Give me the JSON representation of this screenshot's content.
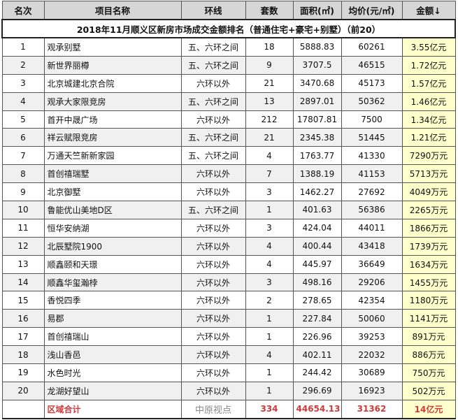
{
  "title": "2018年11月顺义区新房市场成交金额排名（普通住宅+豪宅+别墅）（前20）",
  "headers": [
    "名次",
    "项目名称",
    "环线",
    "套数",
    "面积(㎡)",
    "均价(元/㎡)",
    "金额↓"
  ],
  "rows": [
    [
      "1",
      "观承别墅",
      "五、六环之间",
      "18",
      "5888.83",
      "60261",
      "3.55亿元"
    ],
    [
      "2",
      "新世界丽樽",
      "五、六环之间",
      "9",
      "3707.5",
      "46515",
      "1.72亿元"
    ],
    [
      "3",
      "北京城建北京合院",
      "六环以外",
      "21",
      "3470.68",
      "45173",
      "1.57亿元"
    ],
    [
      "4",
      "观承大家限竞房",
      "五、六环之间",
      "13",
      "2897.01",
      "50362",
      "1.46亿元"
    ],
    [
      "5",
      "首开中晟广场",
      "六环以外",
      "212",
      "17807.81",
      "7500",
      "1.34亿元"
    ],
    [
      "6",
      "祥云赋限竞房",
      "五、六环之间",
      "21",
      "2345.38",
      "51445",
      "1.21亿元"
    ],
    [
      "7",
      "万通天竺新新家园",
      "五、六环之间",
      "4",
      "1763.77",
      "41330",
      "7290万元"
    ],
    [
      "8",
      "首创禧瑞墅",
      "六环以外",
      "7",
      "1388.19",
      "41153",
      "5713万元"
    ],
    [
      "9",
      "北京御墅",
      "六环以外",
      "3",
      "1462.27",
      "27692",
      "4049万元"
    ],
    [
      "10",
      "鲁能优山美地D区",
      "五、六环之间",
      "1",
      "401.63",
      "56386",
      "2265万元"
    ],
    [
      "11",
      "恒华安纳湖",
      "六环以外",
      "3",
      "424.04",
      "44011",
      "1866万元"
    ],
    [
      "12",
      "北辰墅院1900",
      "六环以外",
      "4",
      "400.44",
      "43418",
      "1739万元"
    ],
    [
      "13",
      "顺鑫颐和天璟",
      "六环以外",
      "4",
      "445.97",
      "36649",
      "1634万元"
    ],
    [
      "14",
      "顺鑫华玺瀚桲",
      "六环以外",
      "3",
      "498.16",
      "29206",
      "1455万元"
    ],
    [
      "15",
      "香悦四季",
      "六环以外",
      "2",
      "278.65",
      "42354",
      "1180万元"
    ],
    [
      "16",
      "易郡",
      "六环以外",
      "1",
      "227.84",
      "50060",
      "1141万元"
    ],
    [
      "17",
      "首创禧瑞山",
      "六环以外",
      "1",
      "226.96",
      "39253",
      "891万元"
    ],
    [
      "18",
      "浅山香邑",
      "六环以外",
      "4",
      "402.11",
      "22032",
      "886万元"
    ],
    [
      "19",
      "水色时光",
      "六环以外",
      "1",
      "244.42",
      "30689",
      "750万元"
    ],
    [
      "20",
      "龙湖好望山",
      "六环以外",
      "1",
      "296.69",
      "16923",
      "502万元"
    ]
  ],
  "total": {
    "label": "区域合计",
    "units": "334",
    "area": "44654.13",
    "price": "31362",
    "amount": "14亿元"
  },
  "watermark": "中原视点",
  "colors": {
    "header_bg": "#d6d6d6",
    "amount_bg": "#ffffcc",
    "total_text": "#d03a3a",
    "stripe": "#f0f0f0"
  }
}
